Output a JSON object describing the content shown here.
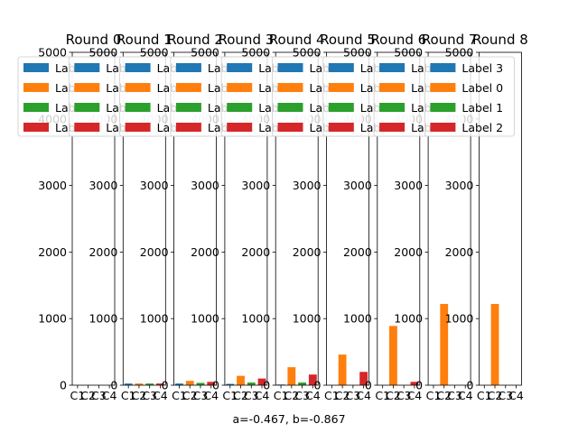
{
  "chart_data": {
    "type": "bar",
    "layout": "small-multiples",
    "caption": "a=-0.467, b=-0.867",
    "categories": [
      "C1",
      "C2",
      "C3",
      "C4"
    ],
    "legend_order": [
      "Label 3",
      "Label 0",
      "Label 1",
      "Label 2"
    ],
    "legend_position": "upper-left",
    "series_colors": {
      "Label 3": "#1f77b4",
      "Label 0": "#ff7f0e",
      "Label 1": "#2ca02c",
      "Label 2": "#d62728"
    },
    "ylim": [
      0,
      5000
    ],
    "yticks": [
      0,
      1000,
      2000,
      3000,
      4000,
      5000
    ],
    "grid": false,
    "panels": [
      {
        "title": "Round 0",
        "bars": [
          {
            "category": "C1",
            "series": "Label 3",
            "value": 0
          },
          {
            "category": "C2",
            "series": "Label 0",
            "value": 0
          },
          {
            "category": "C3",
            "series": "Label 1",
            "value": 0
          },
          {
            "category": "C4",
            "series": "Label 2",
            "value": 0
          }
        ]
      },
      {
        "title": "Round 1",
        "bars": [
          {
            "category": "C1",
            "series": "Label 3",
            "value": 25
          },
          {
            "category": "C2",
            "series": "Label 0",
            "value": 25
          },
          {
            "category": "C3",
            "series": "Label 1",
            "value": 25
          },
          {
            "category": "C4",
            "series": "Label 2",
            "value": 25
          }
        ]
      },
      {
        "title": "Round 2",
        "bars": [
          {
            "category": "C1",
            "series": "Label 3",
            "value": 25
          },
          {
            "category": "C2",
            "series": "Label 0",
            "value": 65
          },
          {
            "category": "C3",
            "series": "Label 1",
            "value": 35
          },
          {
            "category": "C4",
            "series": "Label 2",
            "value": 50
          }
        ]
      },
      {
        "title": "Round 3",
        "bars": [
          {
            "category": "C1",
            "series": "Label 3",
            "value": 20
          },
          {
            "category": "C2",
            "series": "Label 0",
            "value": 140
          },
          {
            "category": "C3",
            "series": "Label 1",
            "value": 40
          },
          {
            "category": "C4",
            "series": "Label 2",
            "value": 100
          }
        ]
      },
      {
        "title": "Round 4",
        "bars": [
          {
            "category": "C1",
            "series": "Label 3",
            "value": 10
          },
          {
            "category": "C2",
            "series": "Label 0",
            "value": 270
          },
          {
            "category": "C3",
            "series": "Label 1",
            "value": 40
          },
          {
            "category": "C4",
            "series": "Label 2",
            "value": 160
          }
        ]
      },
      {
        "title": "Round 5",
        "bars": [
          {
            "category": "C1",
            "series": "Label 3",
            "value": 0
          },
          {
            "category": "C2",
            "series": "Label 0",
            "value": 460
          },
          {
            "category": "C3",
            "series": "Label 1",
            "value": 0
          },
          {
            "category": "C4",
            "series": "Label 2",
            "value": 200
          }
        ]
      },
      {
        "title": "Round 6",
        "bars": [
          {
            "category": "C1",
            "series": "Label 3",
            "value": 0
          },
          {
            "category": "C2",
            "series": "Label 0",
            "value": 890
          },
          {
            "category": "C3",
            "series": "Label 1",
            "value": 0
          },
          {
            "category": "C4",
            "series": "Label 2",
            "value": 50
          }
        ]
      },
      {
        "title": "Round 7",
        "bars": [
          {
            "category": "C1",
            "series": "Label 3",
            "value": 0
          },
          {
            "category": "C2",
            "series": "Label 0",
            "value": 1220
          },
          {
            "category": "C3",
            "series": "Label 1",
            "value": 0
          },
          {
            "category": "C4",
            "series": "Label 2",
            "value": 0
          }
        ]
      },
      {
        "title": "Round 8",
        "bars": [
          {
            "category": "C1",
            "series": "Label 3",
            "value": 0
          },
          {
            "category": "C2",
            "series": "Label 0",
            "value": 1220
          },
          {
            "category": "C3",
            "series": "Label 1",
            "value": 0
          },
          {
            "category": "C4",
            "series": "Label 2",
            "value": 0
          }
        ]
      }
    ]
  }
}
